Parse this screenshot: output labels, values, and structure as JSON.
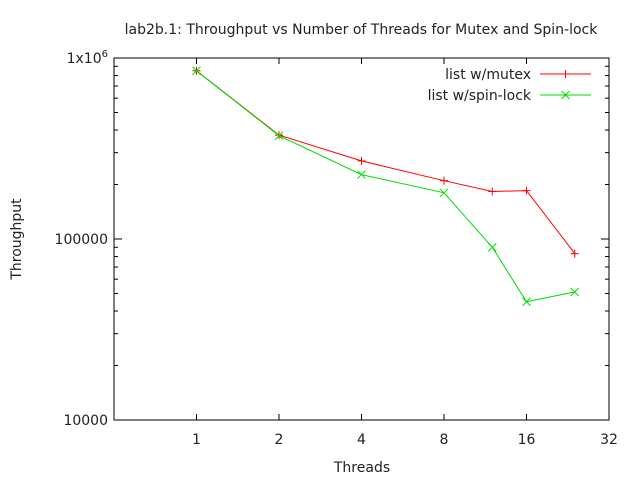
{
  "chart_data": {
    "type": "line",
    "title": "lab2b.1: Throughput vs Number of Threads for Mutex and Spin-lock",
    "xlabel": "Threads",
    "ylabel": "Throughput",
    "x_scale": "log2",
    "y_scale": "log10",
    "xlim": [
      0.5,
      32
    ],
    "ylim": [
      10000,
      1000000
    ],
    "x_ticks": [
      {
        "value": 1,
        "label": "1"
      },
      {
        "value": 2,
        "label": "2"
      },
      {
        "value": 4,
        "label": "4"
      },
      {
        "value": 8,
        "label": "8"
      },
      {
        "value": 16,
        "label": "16"
      },
      {
        "value": 32,
        "label": "32"
      }
    ],
    "y_ticks": [
      {
        "value": 10000,
        "label": "10000"
      },
      {
        "value": 100000,
        "label": "100000"
      },
      {
        "value": 1000000,
        "label": "1x10",
        "sup": "6"
      }
    ],
    "x": [
      1,
      2,
      4,
      8,
      12,
      16,
      24
    ],
    "series": [
      {
        "name": "list w/mutex",
        "color": "#ff0000",
        "marker": "plus",
        "values": [
          850000,
          375000,
          270000,
          210000,
          183000,
          185000,
          83000
        ]
      },
      {
        "name": "list w/spin-lock",
        "color": "#00dd00",
        "marker": "cross",
        "values": [
          850000,
          372000,
          227000,
          180000,
          90000,
          45000,
          51000
        ]
      }
    ],
    "legend_position": "top-right",
    "grid": false
  }
}
